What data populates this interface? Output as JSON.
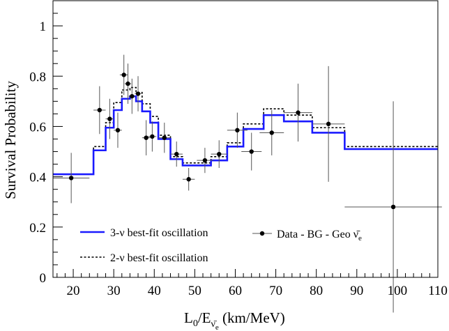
{
  "chart_data": {
    "type": "line",
    "xlabel": "L0/Eν̄e (km/MeV)",
    "xlabel_parts": {
      "main": "L",
      "sub0": "0",
      "slash": "/E",
      "sub1": "ν̄",
      "sub2": "e",
      "unit": " (km/MeV)"
    },
    "ylabel": "Survival Probability",
    "xlim": [
      15,
      110
    ],
    "ylim": [
      0,
      1.1
    ],
    "xticks": [
      20,
      30,
      40,
      50,
      60,
      70,
      80,
      90,
      100,
      110
    ],
    "yticks": [
      0,
      0.2,
      0.4,
      0.6,
      0.8,
      1
    ],
    "grid": false,
    "legend_position": "bottom-left",
    "series": [
      {
        "name": "3-ν best-fit oscillation",
        "kind": "step",
        "color": "#1a1aff",
        "style": "solid",
        "steps": [
          {
            "x0": 15,
            "x1": 25,
            "y": 0.41
          },
          {
            "x0": 25,
            "x1": 28,
            "y": 0.505
          },
          {
            "x0": 28,
            "x1": 30,
            "y": 0.595
          },
          {
            "x0": 30,
            "x1": 32,
            "y": 0.665
          },
          {
            "x0": 32,
            "x1": 34,
            "y": 0.71
          },
          {
            "x0": 34,
            "x1": 35.5,
            "y": 0.72
          },
          {
            "x0": 35.5,
            "x1": 37,
            "y": 0.7
          },
          {
            "x0": 37,
            "x1": 39,
            "y": 0.66
          },
          {
            "x0": 39,
            "x1": 41,
            "y": 0.615
          },
          {
            "x0": 41,
            "x1": 44,
            "y": 0.55
          },
          {
            "x0": 44,
            "x1": 47,
            "y": 0.47
          },
          {
            "x0": 47,
            "x1": 54,
            "y": 0.445
          },
          {
            "x0": 54,
            "x1": 58,
            "y": 0.465
          },
          {
            "x0": 58,
            "x1": 62,
            "y": 0.52
          },
          {
            "x0": 62,
            "x1": 67,
            "y": 0.59
          },
          {
            "x0": 67,
            "x1": 72,
            "y": 0.645
          },
          {
            "x0": 72,
            "x1": 79,
            "y": 0.62
          },
          {
            "x0": 79,
            "x1": 87,
            "y": 0.575
          },
          {
            "x0": 87,
            "x1": 110,
            "y": 0.51
          }
        ]
      },
      {
        "name": "2-ν best-fit oscillation",
        "kind": "step",
        "color": "#000000",
        "style": "dotted",
        "steps": [
          {
            "x0": 15,
            "x1": 25,
            "y": 0.41
          },
          {
            "x0": 25,
            "x1": 28,
            "y": 0.52
          },
          {
            "x0": 28,
            "x1": 30,
            "y": 0.615
          },
          {
            "x0": 30,
            "x1": 32,
            "y": 0.695
          },
          {
            "x0": 32,
            "x1": 34,
            "y": 0.745
          },
          {
            "x0": 34,
            "x1": 35.5,
            "y": 0.755
          },
          {
            "x0": 35.5,
            "x1": 37,
            "y": 0.735
          },
          {
            "x0": 37,
            "x1": 39,
            "y": 0.69
          },
          {
            "x0": 39,
            "x1": 41,
            "y": 0.64
          },
          {
            "x0": 41,
            "x1": 44,
            "y": 0.565
          },
          {
            "x0": 44,
            "x1": 47,
            "y": 0.48
          },
          {
            "x0": 47,
            "x1": 54,
            "y": 0.455
          },
          {
            "x0": 54,
            "x1": 58,
            "y": 0.48
          },
          {
            "x0": 58,
            "x1": 62,
            "y": 0.535
          },
          {
            "x0": 62,
            "x1": 67,
            "y": 0.61
          },
          {
            "x0": 67,
            "x1": 72,
            "y": 0.67
          },
          {
            "x0": 72,
            "x1": 79,
            "y": 0.645
          },
          {
            "x0": 79,
            "x1": 87,
            "y": 0.595
          },
          {
            "x0": 87,
            "x1": 110,
            "y": 0.52
          }
        ]
      },
      {
        "name": "Data - BG - Geo ν̄e",
        "name_parts": {
          "main": "Data - BG - Geo ",
          "nu": "ν̄",
          "sub": "e"
        },
        "kind": "points",
        "color": "#000000",
        "points": [
          {
            "x": 19.5,
            "y": 0.395,
            "xerr": 4.5,
            "yerr": 0.1
          },
          {
            "x": 26.5,
            "y": 0.665,
            "xerr": 1.5,
            "yerr": 0.095
          },
          {
            "x": 29.0,
            "y": 0.63,
            "xerr": 1.0,
            "yerr": 0.08
          },
          {
            "x": 31.0,
            "y": 0.585,
            "xerr": 1.0,
            "yerr": 0.07
          },
          {
            "x": 32.5,
            "y": 0.805,
            "xerr": 1.0,
            "yerr": 0.08
          },
          {
            "x": 33.5,
            "y": 0.77,
            "xerr": 0.8,
            "yerr": 0.08
          },
          {
            "x": 34.5,
            "y": 0.72,
            "xerr": 0.8,
            "yerr": 0.07
          },
          {
            "x": 36.0,
            "y": 0.73,
            "xerr": 0.8,
            "yerr": 0.07
          },
          {
            "x": 38.0,
            "y": 0.555,
            "xerr": 1.0,
            "yerr": 0.07
          },
          {
            "x": 39.5,
            "y": 0.56,
            "xerr": 1.0,
            "yerr": 0.06
          },
          {
            "x": 42.5,
            "y": 0.555,
            "xerr": 1.5,
            "yerr": 0.06
          },
          {
            "x": 45.5,
            "y": 0.49,
            "xerr": 1.5,
            "yerr": 0.05
          },
          {
            "x": 48.5,
            "y": 0.39,
            "xerr": 1.5,
            "yerr": 0.045
          },
          {
            "x": 52.5,
            "y": 0.465,
            "xerr": 2.0,
            "yerr": 0.05
          },
          {
            "x": 56.0,
            "y": 0.49,
            "xerr": 2.0,
            "yerr": 0.055
          },
          {
            "x": 60.5,
            "y": 0.585,
            "xerr": 2.5,
            "yerr": 0.07
          },
          {
            "x": 64.0,
            "y": 0.5,
            "xerr": 2.5,
            "yerr": 0.075
          },
          {
            "x": 69.0,
            "y": 0.575,
            "xerr": 3.0,
            "yerr": 0.09
          },
          {
            "x": 75.5,
            "y": 0.655,
            "xerr": 3.5,
            "yerr": 0.115
          },
          {
            "x": 83.0,
            "y": 0.61,
            "xerr": 4.0,
            "yerr": 0.23
          },
          {
            "x": 99.0,
            "y": 0.28,
            "xerr": 12.0,
            "yerr": 0.42
          }
        ]
      }
    ]
  }
}
